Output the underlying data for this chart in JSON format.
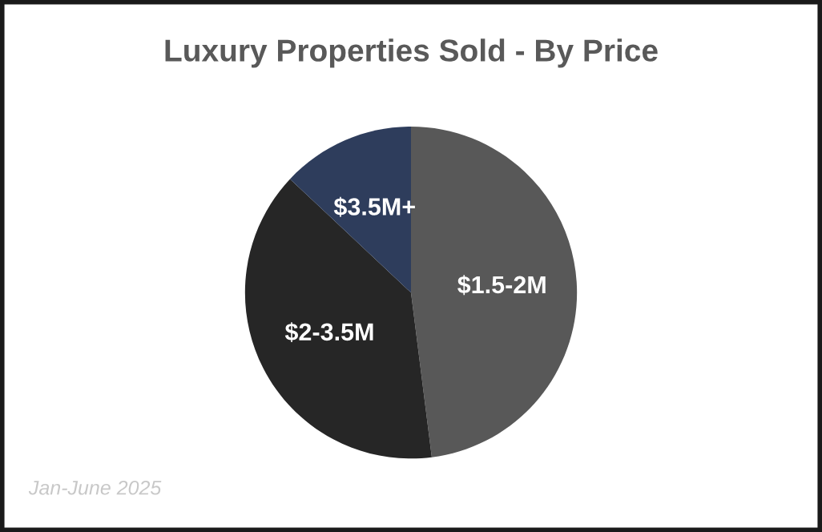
{
  "chart_data": {
    "type": "pie",
    "title": "Luxury Properties Sold - By Price",
    "categories": [
      "$1.5-2M",
      "$2-3.5M",
      "$3.5M+"
    ],
    "values": [
      48,
      39,
      13
    ],
    "colors": [
      "#585858",
      "#262626",
      "#2e3d5c"
    ],
    "annotations": [
      "Jan-June 2025"
    ],
    "legend": false
  }
}
